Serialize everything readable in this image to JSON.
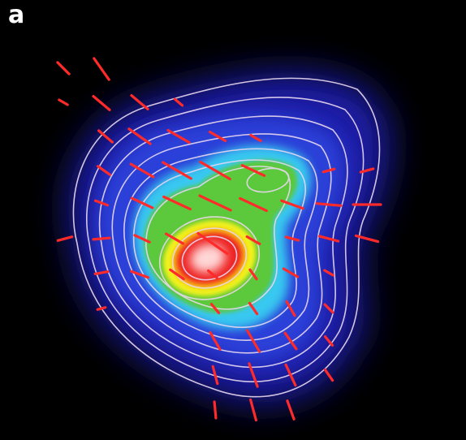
{
  "figure": {
    "panel_label": "a",
    "colors": {
      "background": "#000000",
      "outer_glow": "#1a1fa8",
      "cyan_band": "#38c8f0",
      "green_region": "#5cc83a",
      "yellow": "#f2f21a",
      "red": "#ee2020",
      "core": "#ffd6d6",
      "contour_lines": "#e8d8f0",
      "vectors": "#ff2a2a"
    },
    "contour_count": 9,
    "vector_count": 86
  }
}
